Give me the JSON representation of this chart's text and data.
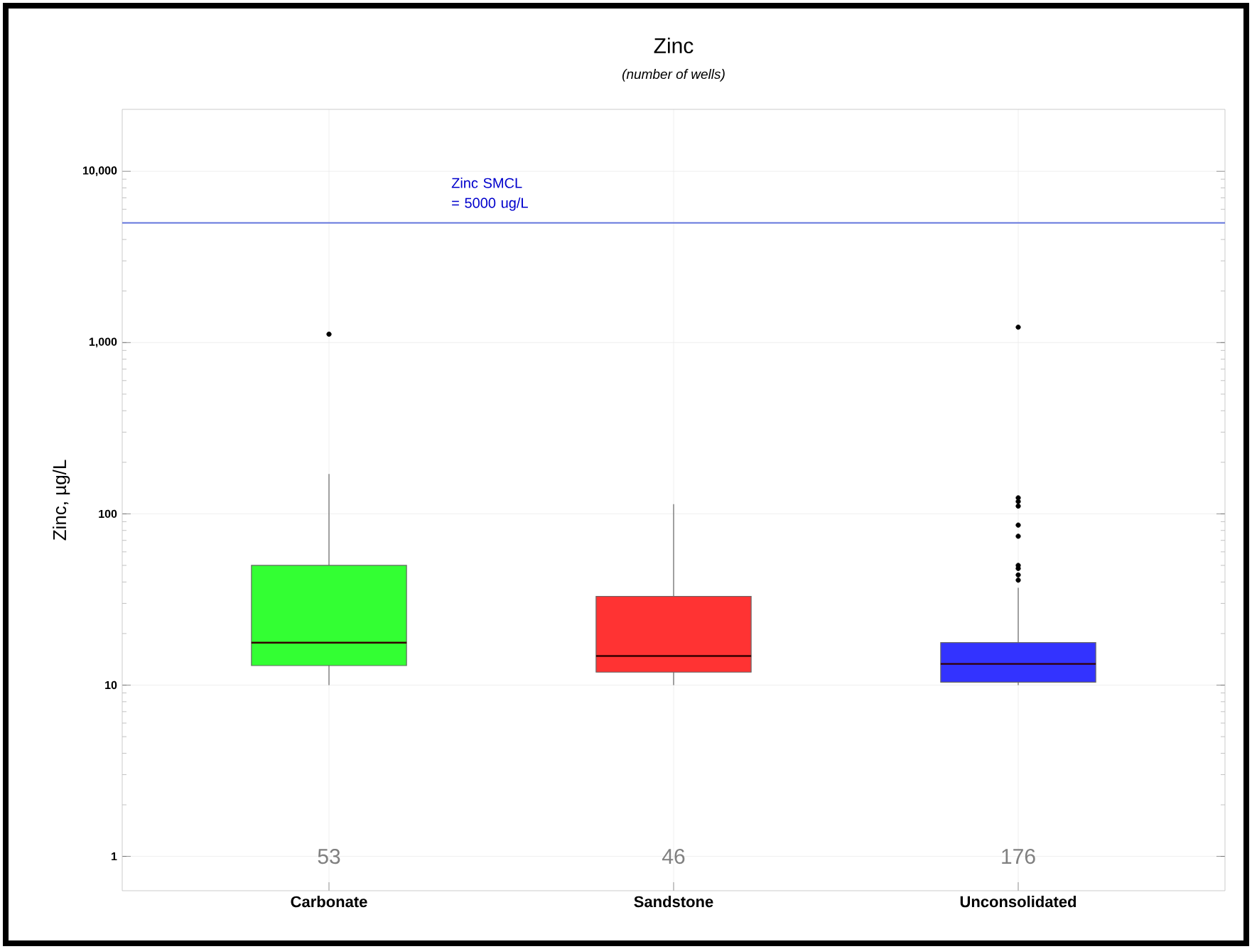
{
  "chart_data": {
    "type": "box",
    "title": "Zinc",
    "subtitle": "(number of wells)",
    "ylabel": "Zinc, µg/L",
    "categories": [
      "Carbonate",
      "Sandstone",
      "Unconsolidated"
    ],
    "colors": [
      "#33ff33",
      "#ff3333",
      "#3333ff"
    ],
    "boxes": [
      {
        "low": 10,
        "q1": 13,
        "median": 17.7,
        "q3": 50,
        "high": 171,
        "outliers": [
          1120
        ]
      },
      {
        "low": 10,
        "q1": 11.9,
        "median": 14.8,
        "q3": 33,
        "high": 114
      },
      {
        "low": 10,
        "q1": 10.4,
        "median": 13.3,
        "q3": 17.7,
        "high": 37,
        "outliers": [
          1230,
          124,
          118,
          111,
          86,
          74,
          50,
          48,
          44,
          41
        ]
      }
    ],
    "log": "y",
    "ylim": [
      0.63,
      23000
    ],
    "yticks": [
      1,
      10,
      100,
      {
        "value": 1000,
        "label": "1,000"
      },
      {
        "value": 10000,
        "label": "10,000"
      }
    ],
    "grid": true,
    "ref_lines": [
      {
        "axis": "y",
        "value": 5000,
        "label": "Zinc SMCL = 5000 ug/L",
        "color": "#6677dd"
      }
    ],
    "annotations": [
      "53",
      "46",
      "176"
    ]
  }
}
